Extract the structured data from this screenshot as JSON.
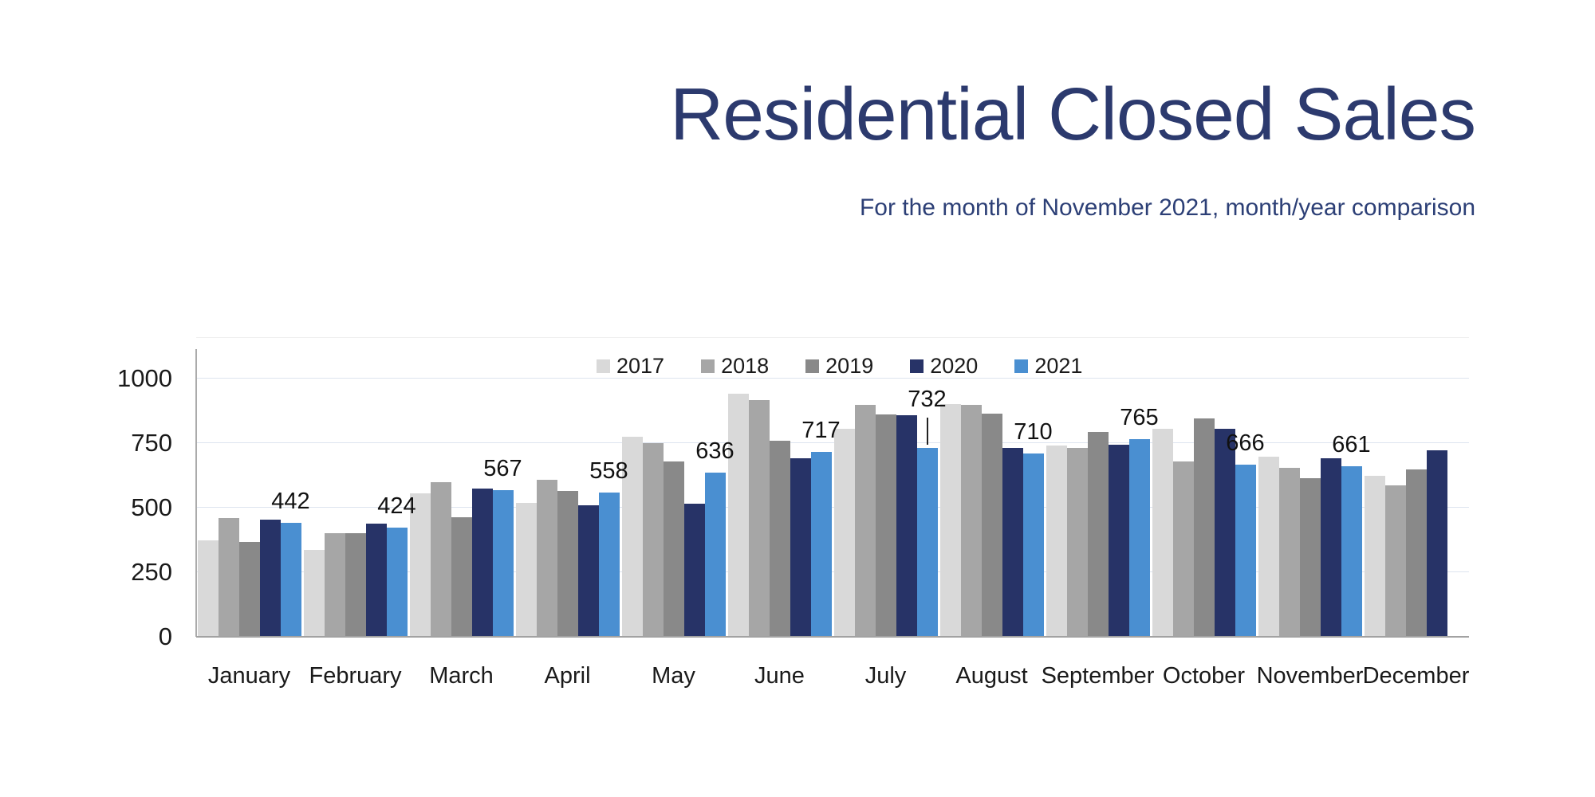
{
  "slide": {
    "title": "Residential Closed Sales",
    "subtitle": "For the month of November 2021, month/year comparison"
  },
  "chart_data": {
    "type": "bar",
    "title": "Residential Closed Sales",
    "subtitle": "For the month of November 2021, month/year comparison",
    "categories": [
      "January",
      "February",
      "March",
      "April",
      "May",
      "June",
      "July",
      "August",
      "September",
      "October",
      "November",
      "December"
    ],
    "series": [
      {
        "name": "2017",
        "color": "#d9d9d9",
        "values": [
          375,
          337,
          555,
          520,
          775,
          940,
          805,
          900,
          742,
          805,
          697,
          625
        ]
      },
      {
        "name": "2018",
        "color": "#a6a6a6",
        "values": [
          460,
          400,
          598,
          607,
          750,
          917,
          898,
          898,
          730,
          678,
          655,
          585
        ]
      },
      {
        "name": "2019",
        "color": "#898989",
        "values": [
          368,
          400,
          462,
          565,
          678,
          760,
          860,
          865,
          793,
          845,
          615,
          647
        ]
      },
      {
        "name": "2020",
        "color": "#273367",
        "values": [
          453,
          437,
          575,
          510,
          514,
          690,
          858,
          730,
          745,
          805,
          690,
          722
        ]
      },
      {
        "name": "2021",
        "color": "#4a8fd1",
        "values": [
          442,
          424,
          567,
          558,
          636,
          717,
          732,
          710,
          765,
          666,
          661,
          null
        ]
      }
    ],
    "data_labels": {
      "series": "2021",
      "values": [
        442,
        424,
        567,
        558,
        636,
        717,
        732,
        710,
        765,
        666,
        661,
        null
      ]
    },
    "label_leader_category": "July",
    "ylim": [
      0,
      1000
    ],
    "yticks": [
      0,
      250,
      500,
      750,
      1000
    ],
    "grid": true,
    "legend_position": "top-inside",
    "colors": {
      "title": "#2c3a6e",
      "gridline": "#dde4ef",
      "axis": "#ababab",
      "label_text": "#111111"
    }
  }
}
